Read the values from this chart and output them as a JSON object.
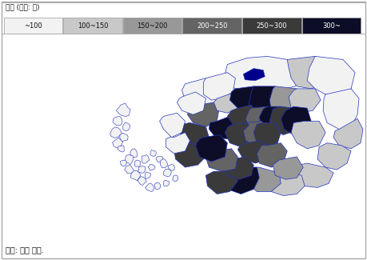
{
  "legend_title": "범례 (단위: 명)",
  "legend_labels": [
    "~100",
    "100~150",
    "150~200",
    "200~250",
    "250~300",
    "300~"
  ],
  "legend_colors": [
    "#f2f2f2",
    "#c8c8c8",
    "#989898",
    "#646464",
    "#3a3a3a",
    "#0d0d28"
  ],
  "legend_text_colors": [
    "#111111",
    "#111111",
    "#111111",
    "#ffffff",
    "#ffffff",
    "#ffffff"
  ],
  "border_color": "#2233bb",
  "source_text": "자료: 저자 작성.",
  "figure_bg": "#ffffff",
  "figsize": [
    4.59,
    3.25
  ],
  "dpi": 100
}
